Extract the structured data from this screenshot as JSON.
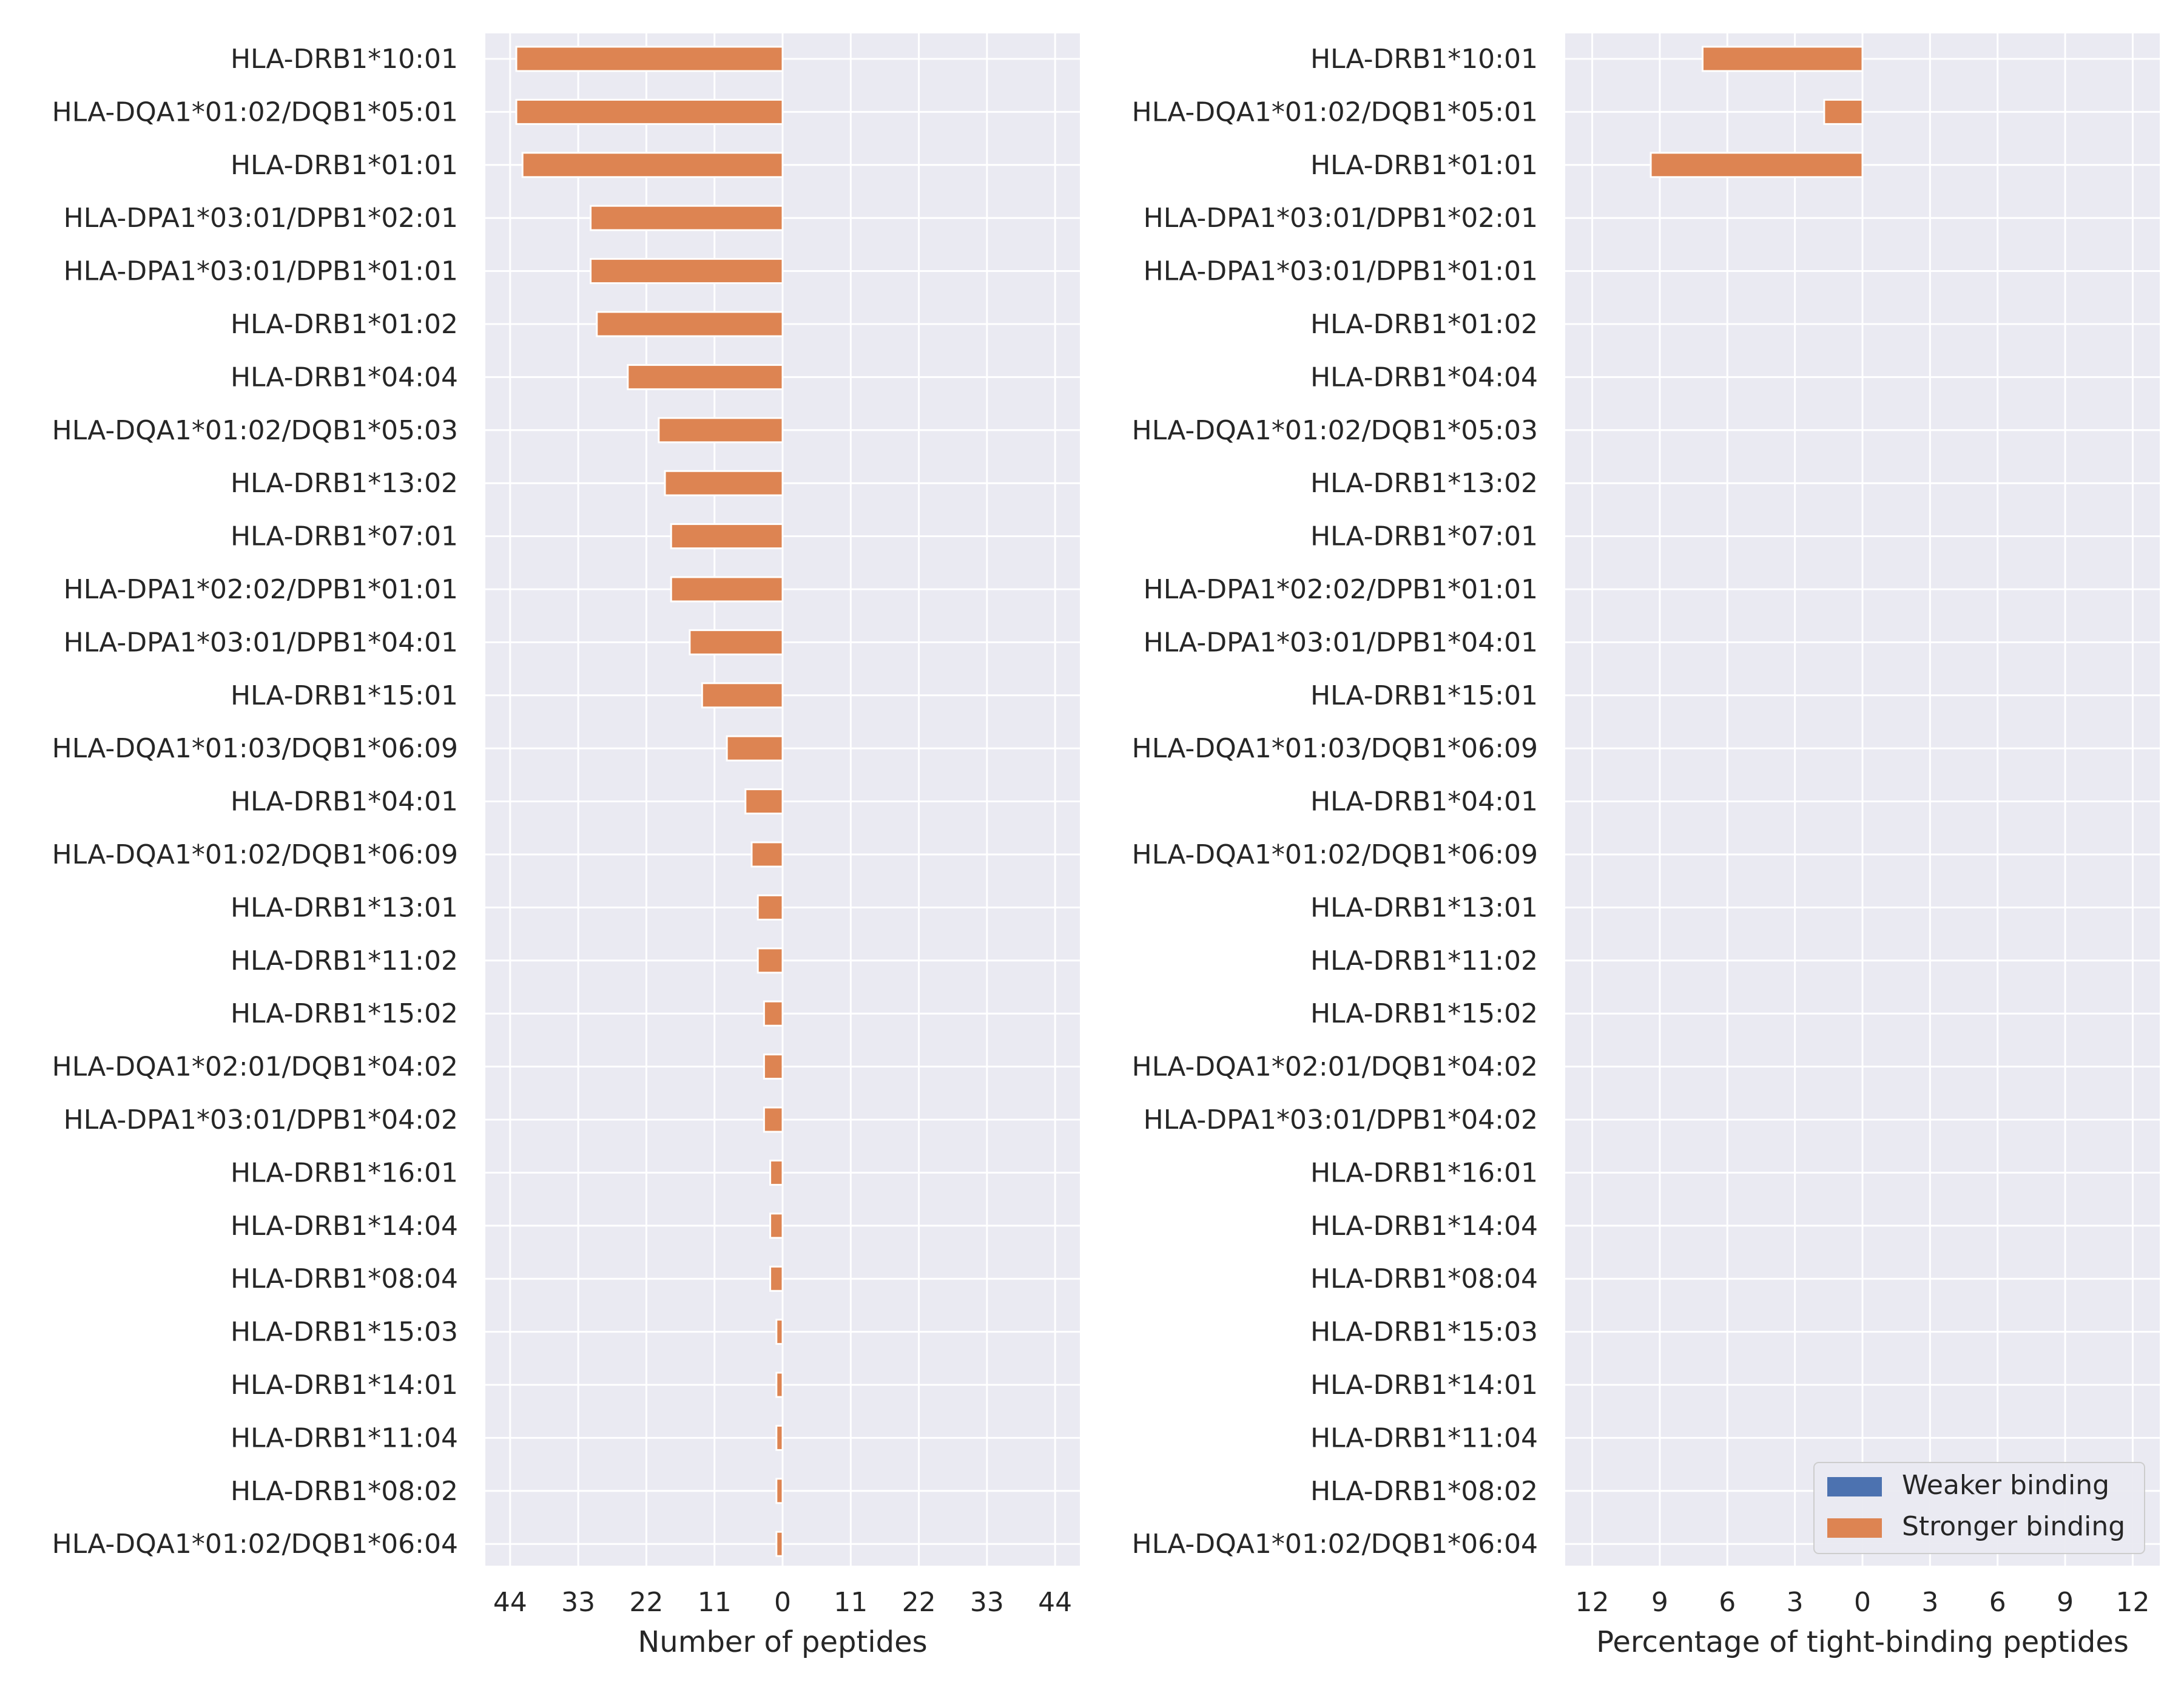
{
  "chart_data": [
    {
      "type": "bar",
      "orientation": "horizontal",
      "grid": true,
      "xlabel": "Number of peptides",
      "ylabel": "",
      "xlim": [
        48,
        -48
      ],
      "xticks": [
        44,
        33,
        22,
        11,
        0,
        11,
        22,
        33,
        44
      ],
      "categories": [
        "HLA-DRB1*10:01",
        "HLA-DQA1*01:02/DQB1*05:01",
        "HLA-DRB1*01:01",
        "HLA-DPA1*03:01/DPB1*02:01",
        "HLA-DPA1*03:01/DPB1*01:01",
        "HLA-DRB1*01:02",
        "HLA-DRB1*04:04",
        "HLA-DQA1*01:02/DQB1*05:03",
        "HLA-DRB1*13:02",
        "HLA-DRB1*07:01",
        "HLA-DPA1*02:02/DPB1*01:01",
        "HLA-DPA1*03:01/DPB1*04:01",
        "HLA-DRB1*15:01",
        "HLA-DQA1*01:03/DQB1*06:09",
        "HLA-DRB1*04:01",
        "HLA-DQA1*01:02/DQB1*06:09",
        "HLA-DRB1*13:01",
        "HLA-DRB1*11:02",
        "HLA-DRB1*15:02",
        "HLA-DQA1*02:01/DQB1*04:02",
        "HLA-DPA1*03:01/DPB1*04:02",
        "HLA-DRB1*16:01",
        "HLA-DRB1*14:04",
        "HLA-DRB1*08:04",
        "HLA-DRB1*15:03",
        "HLA-DRB1*14:01",
        "HLA-DRB1*11:04",
        "HLA-DRB1*08:02",
        "HLA-DQA1*01:02/DQB1*06:04"
      ],
      "series": [
        {
          "name": "Weaker binding",
          "color": "#4c72b0",
          "values": [
            0,
            0,
            0,
            0,
            0,
            0,
            0,
            0,
            0,
            0,
            0,
            0,
            0,
            0,
            0,
            0,
            0,
            0,
            0,
            0,
            0,
            0,
            0,
            0,
            0,
            0,
            0,
            0,
            0
          ]
        },
        {
          "name": "Stronger binding",
          "color": "#dd8452",
          "values": [
            43,
            43,
            42,
            31,
            31,
            30,
            25,
            20,
            19,
            18,
            18,
            15,
            13,
            9,
            6,
            5,
            4,
            4,
            3,
            3,
            3,
            2,
            2,
            2,
            1,
            1,
            1,
            1,
            1
          ]
        }
      ]
    },
    {
      "type": "bar",
      "orientation": "horizontal",
      "grid": true,
      "xlabel": "Percentage of tight-binding peptides",
      "ylabel": "",
      "xlim": [
        13.2,
        -13.2
      ],
      "xticks": [
        12,
        9,
        6,
        3,
        0,
        3,
        6,
        9,
        12
      ],
      "legend_position": "lower-right",
      "categories": [
        "HLA-DRB1*10:01",
        "HLA-DQA1*01:02/DQB1*05:01",
        "HLA-DRB1*01:01",
        "HLA-DPA1*03:01/DPB1*02:01",
        "HLA-DPA1*03:01/DPB1*01:01",
        "HLA-DRB1*01:02",
        "HLA-DRB1*04:04",
        "HLA-DQA1*01:02/DQB1*05:03",
        "HLA-DRB1*13:02",
        "HLA-DRB1*07:01",
        "HLA-DPA1*02:02/DPB1*01:01",
        "HLA-DPA1*03:01/DPB1*04:01",
        "HLA-DRB1*15:01",
        "HLA-DQA1*01:03/DQB1*06:09",
        "HLA-DRB1*04:01",
        "HLA-DQA1*01:02/DQB1*06:09",
        "HLA-DRB1*13:01",
        "HLA-DRB1*11:02",
        "HLA-DRB1*15:02",
        "HLA-DQA1*02:01/DQB1*04:02",
        "HLA-DPA1*03:01/DPB1*04:02",
        "HLA-DRB1*16:01",
        "HLA-DRB1*14:04",
        "HLA-DRB1*08:04",
        "HLA-DRB1*15:03",
        "HLA-DRB1*14:01",
        "HLA-DRB1*11:04",
        "HLA-DRB1*08:02",
        "HLA-DQA1*01:02/DQB1*06:04"
      ],
      "series": [
        {
          "name": "Weaker binding",
          "color": "#4c72b0",
          "values": [
            0,
            0,
            0,
            0,
            0,
            0,
            0,
            0,
            0,
            0,
            0,
            0,
            0,
            0,
            0,
            0,
            0,
            0,
            0,
            0,
            0,
            0,
            0,
            0,
            0,
            0,
            0,
            0,
            0
          ]
        },
        {
          "name": "Stronger binding",
          "color": "#dd8452",
          "values": [
            7.1,
            1.7,
            9.4,
            0,
            0,
            0,
            0,
            0,
            0,
            0,
            0,
            0,
            0,
            0,
            0,
            0,
            0,
            0,
            0,
            0,
            0,
            0,
            0,
            0,
            0,
            0,
            0,
            0,
            0
          ]
        }
      ]
    }
  ],
  "style": {
    "panel_background": "#eaeaf2",
    "grid_color": "#ffffff",
    "text_color": "#262626"
  }
}
